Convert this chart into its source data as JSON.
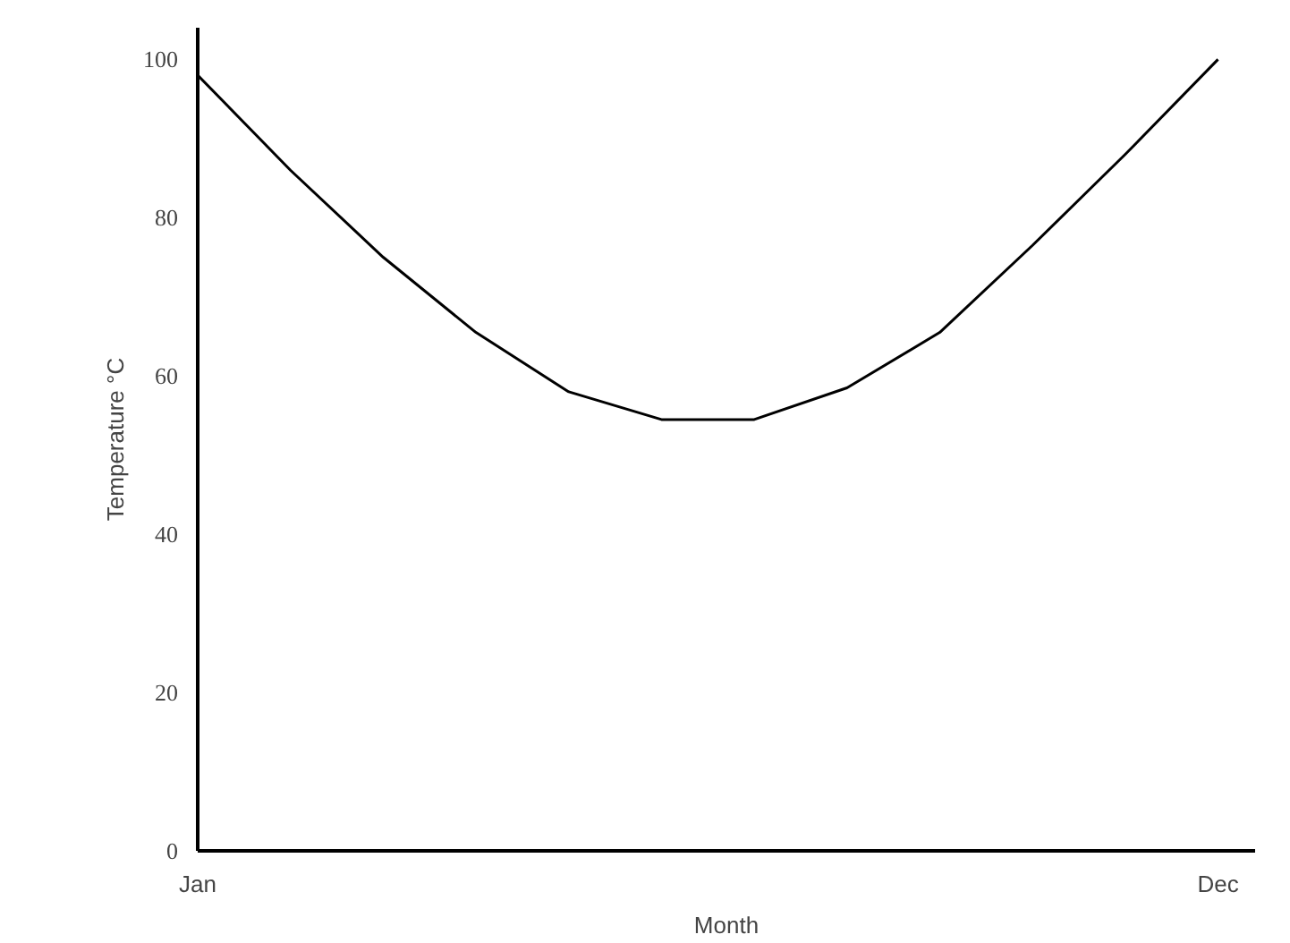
{
  "chart_data": {
    "type": "line",
    "xlabel": "Month",
    "ylabel": "Temperature °C",
    "categories": [
      "Jan",
      null,
      null,
      null,
      null,
      null,
      null,
      null,
      null,
      null,
      null,
      "Dec"
    ],
    "series": [
      {
        "color": "#000000",
        "values": [
          98,
          86,
          75,
          65.5,
          58,
          54.5,
          54.5,
          58.5,
          65.5,
          76.5,
          88,
          100
        ]
      }
    ],
    "ylim": [
      0,
      104
    ],
    "yticks": [
      0,
      20,
      40,
      60,
      80,
      100
    ],
    "grid": false,
    "marker": "none",
    "line_style": "solid"
  }
}
